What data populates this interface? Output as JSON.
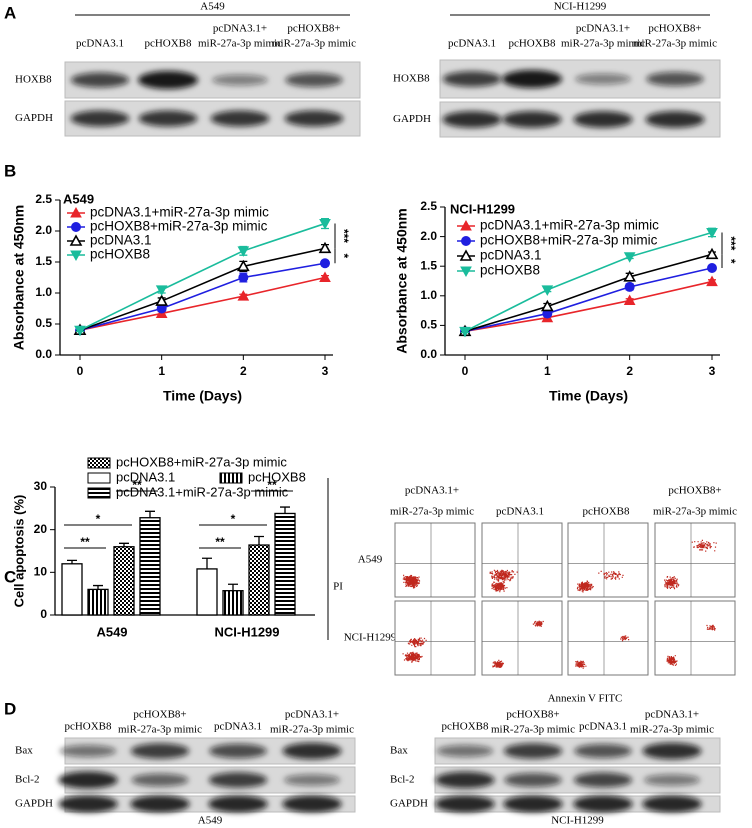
{
  "panels": [
    "A",
    "B",
    "C",
    "D"
  ],
  "blot_a": [
    {
      "cell_line": "A549",
      "lanes": [
        [
          "pcDNA3.1"
        ],
        [
          "pcHOXB8"
        ],
        [
          "pcDNA3.1+",
          "miR-27a-3p mimic"
        ],
        [
          "pcHOXB8+",
          "miR-27a-3p mimic"
        ]
      ],
      "rows": [
        "HOXB8",
        "GAPDH"
      ]
    },
    {
      "cell_line": "NCI-H1299",
      "lanes": [
        [
          "pcDNA3.1"
        ],
        [
          "pcHOXB8"
        ],
        [
          "pcDNA3.1+",
          "miR-27a-3p mimic"
        ],
        [
          "pcHOXB8+",
          "miR-27a-3p mimic"
        ]
      ],
      "rows": [
        "HOXB8",
        "GAPDH"
      ]
    }
  ],
  "chart_data": [
    {
      "type": "line",
      "subtitle": "A549",
      "x_label": "Time (Days)",
      "y_label": "Absorbance at 450nm",
      "x": [
        0,
        1,
        2,
        3
      ],
      "xlim": [
        0,
        3
      ],
      "xticks": [
        0,
        1,
        2,
        3
      ],
      "ylim": [
        0,
        2.5
      ],
      "yticks": [
        {
          "value": 0,
          "label": "0.0"
        },
        0.5,
        {
          "value": 1,
          "label": "1.0"
        },
        1.5,
        {
          "value": 2,
          "label": "2.0"
        },
        2.5
      ],
      "series": [
        {
          "name": "pcDNA3.1+miR-27a-3p mimic",
          "color": "#e8252a",
          "marker": "triangle",
          "values": [
            0.4,
            0.67,
            0.95,
            1.25
          ],
          "errors": [
            0.02,
            0.03,
            0.03,
            0.03
          ]
        },
        {
          "name": "pcHOXB8+miR-27a-3p mimic",
          "color": "#1f1fe0",
          "marker": "circle",
          "values": [
            0.4,
            0.75,
            1.25,
            1.48
          ],
          "errors": [
            0.02,
            0.04,
            0.07,
            0.04
          ]
        },
        {
          "name": "pcDNA3.1",
          "color": "#000000",
          "marker": "triangle-open",
          "values": [
            0.4,
            0.87,
            1.43,
            1.72
          ],
          "errors": [
            0.02,
            0.05,
            0.08,
            0.06
          ]
        },
        {
          "name": "pcHOXB8",
          "color": "#1abc9c",
          "marker": "triangle-down",
          "values": [
            0.4,
            1.05,
            1.68,
            2.12
          ],
          "errors": [
            0.02,
            0.05,
            0.07,
            0.08
          ]
        }
      ],
      "annotations": [
        "***",
        "*"
      ]
    },
    {
      "type": "line",
      "subtitle": "NCI-H1299",
      "x_label": "Time (Days)",
      "y_label": "Absorbance at 450nm",
      "x": [
        0,
        1,
        2,
        3
      ],
      "xlim": [
        0,
        3
      ],
      "xticks": [
        0,
        1,
        2,
        3
      ],
      "ylim": [
        0,
        2.5
      ],
      "yticks": [
        {
          "value": 0,
          "label": "0.0"
        },
        0.5,
        {
          "value": 1,
          "label": "1.0"
        },
        1.5,
        {
          "value": 2,
          "label": "2.0"
        },
        2.5
      ],
      "series": [
        {
          "name": "pcDNA3.1+miR-27a-3p mimic",
          "color": "#e8252a",
          "marker": "triangle",
          "values": [
            0.4,
            0.63,
            0.92,
            1.24
          ],
          "errors": [
            0.02,
            0.03,
            0.03,
            0.03
          ]
        },
        {
          "name": "pcHOXB8+miR-27a-3p mimic",
          "color": "#1f1fe0",
          "marker": "circle",
          "values": [
            0.4,
            0.7,
            1.15,
            1.47
          ],
          "errors": [
            0.02,
            0.04,
            0.05,
            0.04
          ]
        },
        {
          "name": "pcDNA3.1",
          "color": "#000000",
          "marker": "triangle-open",
          "values": [
            0.4,
            0.82,
            1.32,
            1.7
          ],
          "errors": [
            0.02,
            0.05,
            0.06,
            0.04
          ]
        },
        {
          "name": "pcHOXB8",
          "color": "#1abc9c",
          "marker": "triangle-down",
          "values": [
            0.4,
            1.1,
            1.66,
            2.07
          ],
          "errors": [
            0.02,
            0.03,
            0.03,
            0.07
          ]
        }
      ],
      "annotations": [
        "***",
        "*"
      ]
    },
    {
      "type": "bar",
      "y_label": "Cell apoptosis (%)",
      "categories": [
        "A549",
        "NCI-H1299"
      ],
      "ylim": [
        0,
        30
      ],
      "yticks": [
        0,
        10,
        20,
        30
      ],
      "series": [
        {
          "name": "pcDNA3.1",
          "color": "#000000",
          "pattern": "none",
          "values": [
            12,
            10.8
          ],
          "errors": [
            0.8,
            2.5
          ]
        },
        {
          "name": "pcHOXB8",
          "color": "#000000",
          "pattern": "vertical",
          "values": [
            6,
            5.7
          ],
          "errors": [
            0.9,
            1.5
          ]
        },
        {
          "name": "pcHOXB8+miR-27a-3p mimic",
          "color": "#000000",
          "pattern": "checker",
          "values": [
            16,
            16.4
          ],
          "errors": [
            0.8,
            2
          ]
        },
        {
          "name": "pcDNA3.1+miR-27a-3p mimic",
          "color": "#000000",
          "pattern": "horizontal",
          "values": [
            22.8,
            23.8
          ],
          "errors": [
            1.5,
            1.5
          ]
        }
      ],
      "annotations": [
        "**",
        "*",
        "**"
      ]
    }
  ],
  "flow": {
    "columns": [
      [
        "pcDNA3.1+",
        "miR-27a-3p mimic"
      ],
      [
        "pcDNA3.1"
      ],
      [
        "pcHOXB8"
      ],
      [
        "pcHOXB8+",
        "miR-27a-3p mimic"
      ]
    ],
    "rows": [
      "A549",
      "NCI-H1299"
    ],
    "y_label": "PI",
    "x_label": "Annexin V FITC"
  },
  "blot_d": [
    {
      "cell_line": "A549",
      "lanes": [
        [
          "pcHOXB8"
        ],
        [
          "pcHOXB8+",
          "miR-27a-3p mimic"
        ],
        [
          "pcDNA3.1"
        ],
        [
          "pcDNA3.1+",
          "miR-27a-3p mimic"
        ]
      ],
      "rows": [
        "Bax",
        "Bcl-2",
        "GAPDH"
      ]
    },
    {
      "cell_line": "NCI-H1299",
      "lanes": [
        [
          "pcHOXB8"
        ],
        [
          "pcHOXB8+",
          "miR-27a-3p mimic"
        ],
        [
          "pcDNA3.1"
        ],
        [
          "pcDNA3.1+",
          "miR-27a-3p mimic"
        ]
      ],
      "rows": [
        "Bax",
        "Bcl-2",
        "GAPDH"
      ]
    }
  ]
}
